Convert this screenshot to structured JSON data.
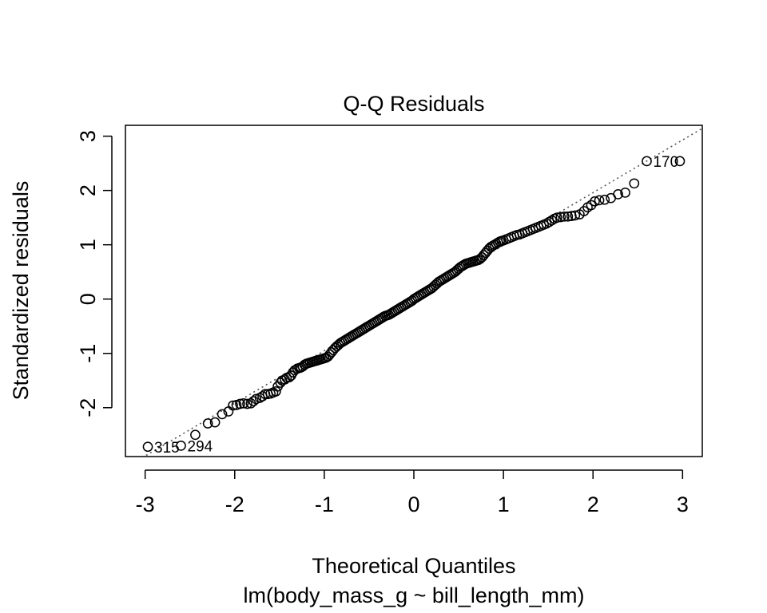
{
  "chart_data": {
    "type": "scatter",
    "title": "Q-Q Residuals",
    "xlabel": "Theoretical Quantiles",
    "xlabel2": "lm(body_mass_g ~ bill_length_mm)",
    "ylabel": "Standardized residuals",
    "xlim": [
      -3.22,
      3.22
    ],
    "ylim": [
      -2.9,
      3.2
    ],
    "xticks": [
      -3,
      -2,
      -1,
      0,
      1,
      2,
      3
    ],
    "yticks": [
      -2,
      -1,
      0,
      1,
      2,
      3
    ],
    "xtick_labels": [
      "-3",
      "-2",
      "-1",
      "0",
      "1",
      "2",
      "3"
    ],
    "ytick_labels": [
      "-2",
      "-1",
      "0",
      "1",
      "2",
      "3"
    ],
    "reference_line": {
      "intercept": 0.02,
      "slope": 0.97,
      "style": "dotted",
      "color": "#555555"
    },
    "grid": false,
    "outlier_labels": [
      {
        "text": "170",
        "x": 2.6,
        "y": 2.54
      },
      {
        "text": "315",
        "x": -2.97,
        "y": -2.72
      },
      {
        "text": "294",
        "x": -2.6,
        "y": -2.7
      }
    ],
    "points": [
      [
        -2.97,
        -2.72
      ],
      [
        -2.6,
        -2.7
      ],
      [
        -2.44,
        -2.5
      ],
      [
        -2.3,
        -2.29
      ],
      [
        -2.22,
        -2.27
      ],
      [
        -2.14,
        -2.12
      ],
      [
        -2.07,
        -2.07
      ],
      [
        -2.02,
        -1.96
      ],
      [
        -1.98,
        -1.95
      ],
      [
        -1.94,
        -1.93
      ],
      [
        -1.9,
        -1.92
      ],
      [
        -1.86,
        -1.93
      ],
      [
        -1.82,
        -1.92
      ],
      [
        -1.79,
        -1.88
      ],
      [
        -1.76,
        -1.84
      ],
      [
        -1.72,
        -1.82
      ],
      [
        -1.69,
        -1.79
      ],
      [
        -1.66,
        -1.75
      ],
      [
        -1.63,
        -1.75
      ],
      [
        -1.6,
        -1.74
      ],
      [
        -1.57,
        -1.72
      ],
      [
        -1.54,
        -1.7
      ],
      [
        -1.52,
        -1.61
      ],
      [
        -1.49,
        -1.54
      ],
      [
        -1.47,
        -1.5
      ],
      [
        -1.44,
        -1.48
      ],
      [
        -1.42,
        -1.45
      ],
      [
        -1.39,
        -1.44
      ],
      [
        -1.37,
        -1.41
      ],
      [
        -1.35,
        -1.35
      ],
      [
        -1.33,
        -1.31
      ],
      [
        -1.3,
        -1.28
      ],
      [
        -1.28,
        -1.27
      ],
      [
        -1.26,
        -1.26
      ],
      [
        -1.24,
        -1.24
      ],
      [
        -1.22,
        -1.21
      ],
      [
        -1.2,
        -1.19
      ],
      [
        -1.18,
        -1.18
      ],
      [
        -1.16,
        -1.17
      ],
      [
        -1.14,
        -1.16
      ],
      [
        -1.12,
        -1.15
      ],
      [
        -1.1,
        -1.14
      ],
      [
        -1.08,
        -1.13
      ],
      [
        -1.06,
        -1.12
      ],
      [
        -1.04,
        -1.11
      ],
      [
        -1.02,
        -1.1
      ],
      [
        -1.0,
        -1.09
      ],
      [
        -0.98,
        -1.08
      ],
      [
        -0.96,
        -1.06
      ],
      [
        -0.94,
        -1.02
      ],
      [
        -0.92,
        -0.98
      ],
      [
        -0.9,
        -0.94
      ],
      [
        -0.88,
        -0.9
      ],
      [
        -0.86,
        -0.87
      ],
      [
        -0.84,
        -0.84
      ],
      [
        -0.82,
        -0.81
      ],
      [
        -0.8,
        -0.79
      ],
      [
        -0.78,
        -0.77
      ],
      [
        -0.76,
        -0.75
      ],
      [
        -0.74,
        -0.73
      ],
      [
        -0.72,
        -0.71
      ],
      [
        -0.7,
        -0.69
      ],
      [
        -0.68,
        -0.67
      ],
      [
        -0.66,
        -0.65
      ],
      [
        -0.64,
        -0.63
      ],
      [
        -0.62,
        -0.61
      ],
      [
        -0.6,
        -0.59
      ],
      [
        -0.58,
        -0.57
      ],
      [
        -0.56,
        -0.55
      ],
      [
        -0.54,
        -0.53
      ],
      [
        -0.52,
        -0.51
      ],
      [
        -0.5,
        -0.49
      ],
      [
        -0.48,
        -0.47
      ],
      [
        -0.46,
        -0.45
      ],
      [
        -0.44,
        -0.43
      ],
      [
        -0.42,
        -0.41
      ],
      [
        -0.4,
        -0.39
      ],
      [
        -0.38,
        -0.37
      ],
      [
        -0.36,
        -0.35
      ],
      [
        -0.34,
        -0.33
      ],
      [
        -0.32,
        -0.31
      ],
      [
        -0.3,
        -0.3
      ],
      [
        -0.28,
        -0.29
      ],
      [
        -0.26,
        -0.27
      ],
      [
        -0.24,
        -0.25
      ],
      [
        -0.22,
        -0.23
      ],
      [
        -0.2,
        -0.21
      ],
      [
        -0.18,
        -0.19
      ],
      [
        -0.16,
        -0.17
      ],
      [
        -0.14,
        -0.15
      ],
      [
        -0.12,
        -0.13
      ],
      [
        -0.1,
        -0.11
      ],
      [
        -0.08,
        -0.09
      ],
      [
        -0.06,
        -0.07
      ],
      [
        -0.04,
        -0.05
      ],
      [
        -0.02,
        -0.03
      ],
      [
        0.0,
        0.0
      ],
      [
        0.02,
        0.02
      ],
      [
        0.04,
        0.04
      ],
      [
        0.06,
        0.06
      ],
      [
        0.08,
        0.08
      ],
      [
        0.1,
        0.1
      ],
      [
        0.12,
        0.12
      ],
      [
        0.14,
        0.14
      ],
      [
        0.16,
        0.16
      ],
      [
        0.18,
        0.18
      ],
      [
        0.2,
        0.2
      ],
      [
        0.22,
        0.23
      ],
      [
        0.24,
        0.26
      ],
      [
        0.26,
        0.29
      ],
      [
        0.28,
        0.32
      ],
      [
        0.3,
        0.34
      ],
      [
        0.32,
        0.36
      ],
      [
        0.34,
        0.38
      ],
      [
        0.36,
        0.4
      ],
      [
        0.38,
        0.42
      ],
      [
        0.4,
        0.44
      ],
      [
        0.42,
        0.46
      ],
      [
        0.44,
        0.48
      ],
      [
        0.46,
        0.5
      ],
      [
        0.48,
        0.53
      ],
      [
        0.5,
        0.56
      ],
      [
        0.52,
        0.59
      ],
      [
        0.54,
        0.61
      ],
      [
        0.56,
        0.63
      ],
      [
        0.58,
        0.65
      ],
      [
        0.6,
        0.66
      ],
      [
        0.62,
        0.67
      ],
      [
        0.64,
        0.68
      ],
      [
        0.66,
        0.69
      ],
      [
        0.68,
        0.7
      ],
      [
        0.7,
        0.71
      ],
      [
        0.72,
        0.72
      ],
      [
        0.74,
        0.74
      ],
      [
        0.76,
        0.77
      ],
      [
        0.78,
        0.81
      ],
      [
        0.8,
        0.85
      ],
      [
        0.82,
        0.89
      ],
      [
        0.84,
        0.93
      ],
      [
        0.86,
        0.96
      ],
      [
        0.88,
        0.98
      ],
      [
        0.9,
        1.0
      ],
      [
        0.92,
        1.02
      ],
      [
        0.94,
        1.04
      ],
      [
        0.96,
        1.06
      ],
      [
        0.98,
        1.07
      ],
      [
        1.0,
        1.08
      ],
      [
        1.03,
        1.1
      ],
      [
        1.06,
        1.12
      ],
      [
        1.09,
        1.14
      ],
      [
        1.12,
        1.16
      ],
      [
        1.15,
        1.18
      ],
      [
        1.18,
        1.19
      ],
      [
        1.21,
        1.21
      ],
      [
        1.24,
        1.23
      ],
      [
        1.27,
        1.25
      ],
      [
        1.3,
        1.27
      ],
      [
        1.33,
        1.29
      ],
      [
        1.36,
        1.31
      ],
      [
        1.39,
        1.33
      ],
      [
        1.42,
        1.35
      ],
      [
        1.45,
        1.37
      ],
      [
        1.48,
        1.39
      ],
      [
        1.51,
        1.42
      ],
      [
        1.54,
        1.45
      ],
      [
        1.57,
        1.48
      ],
      [
        1.6,
        1.5
      ],
      [
        1.64,
        1.51
      ],
      [
        1.68,
        1.52
      ],
      [
        1.72,
        1.52
      ],
      [
        1.76,
        1.53
      ],
      [
        1.8,
        1.54
      ],
      [
        1.85,
        1.56
      ],
      [
        1.9,
        1.62
      ],
      [
        1.94,
        1.69
      ],
      [
        1.98,
        1.73
      ],
      [
        2.02,
        1.8
      ],
      [
        2.07,
        1.82
      ],
      [
        2.13,
        1.83
      ],
      [
        2.2,
        1.86
      ],
      [
        2.28,
        1.93
      ],
      [
        2.36,
        1.96
      ],
      [
        2.46,
        2.13
      ],
      [
        2.6,
        2.54
      ],
      [
        2.97,
        2.54
      ]
    ]
  }
}
